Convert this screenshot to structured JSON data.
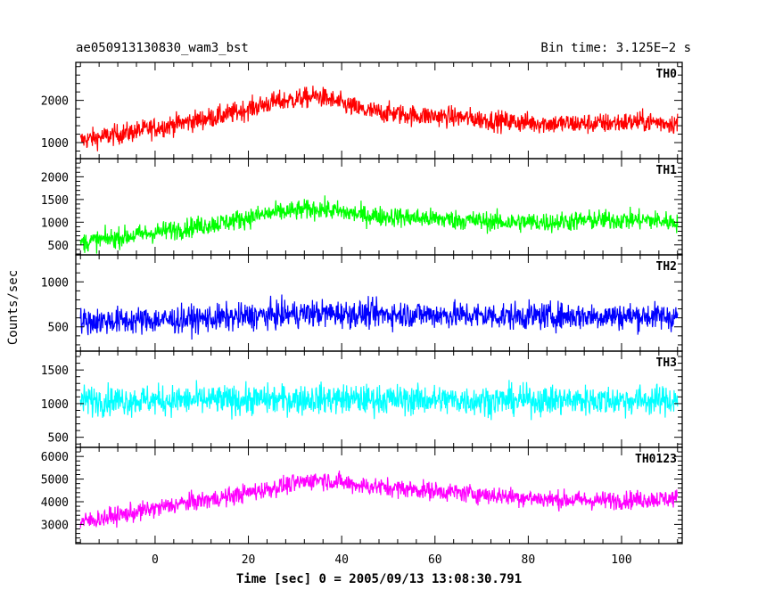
{
  "header": {
    "left_title": "ae050913130830_wam3_bst",
    "right_title": "Bin time: 3.125E−2 s"
  },
  "ylabel": "Counts/sec",
  "xlabel": "Time [sec] 0 = 2005/09/13 13:08:30.791",
  "chart_data": {
    "type": "line",
    "title": "ae050913130830_wam3_bst",
    "subtitle": "Bin time: 3.125E−2 s",
    "xlabel": "Time [sec] 0 = 2005/09/13 13:08:30.791",
    "ylabel": "Counts/sec",
    "xlim": [
      -17,
      113
    ],
    "x_ticks": [
      0,
      20,
      40,
      60,
      80,
      100
    ],
    "x_range_data": [
      -16,
      112
    ],
    "grid": false,
    "panels": [
      {
        "name": "TH0",
        "color": "#ff0000",
        "ylim": [
          620,
          2900
        ],
        "yticks": [
          1000,
          2000
        ],
        "x": [
          -16,
          -5,
          5,
          15,
          25,
          35,
          45,
          55,
          65,
          75,
          85,
          95,
          105,
          112
        ],
        "y": [
          1050,
          1250,
          1450,
          1650,
          1950,
          2100,
          1750,
          1650,
          1600,
          1500,
          1450,
          1450,
          1500,
          1450
        ],
        "spread": 420
      },
      {
        "name": "TH1",
        "color": "#00ff00",
        "ylim": [
          280,
          2400
        ],
        "yticks": [
          500,
          1000,
          1500,
          2000
        ],
        "x": [
          -16,
          -5,
          5,
          15,
          25,
          35,
          45,
          55,
          65,
          75,
          85,
          95,
          105,
          112
        ],
        "y": [
          550,
          700,
          850,
          1000,
          1200,
          1300,
          1150,
          1100,
          1050,
          1000,
          1000,
          1050,
          1050,
          1000
        ],
        "spread": 380
      },
      {
        "name": "TH2",
        "color": "#0000ff",
        "ylim": [
          230,
          1300
        ],
        "yticks": [
          500,
          1000
        ],
        "x": [
          -16,
          -5,
          5,
          15,
          25,
          35,
          45,
          55,
          65,
          75,
          85,
          95,
          105,
          112
        ],
        "y": [
          560,
          570,
          580,
          600,
          630,
          650,
          640,
          640,
          630,
          620,
          620,
          620,
          620,
          610
        ],
        "spread": 260
      },
      {
        "name": "TH3",
        "color": "#00ffff",
        "ylim": [
          350,
          1780
        ],
        "yticks": [
          500,
          1000,
          1500
        ],
        "x": [
          -16,
          -5,
          5,
          15,
          25,
          35,
          45,
          55,
          65,
          75,
          85,
          95,
          105,
          112
        ],
        "y": [
          1050,
          1050,
          1050,
          1050,
          1060,
          1070,
          1060,
          1060,
          1050,
          1050,
          1050,
          1050,
          1050,
          1050
        ],
        "spread": 380
      },
      {
        "name": "TH0123",
        "color": "#ff00ff",
        "ylim": [
          2150,
          6400
        ],
        "yticks": [
          3000,
          4000,
          5000,
          6000
        ],
        "x": [
          -16,
          -5,
          5,
          15,
          25,
          35,
          45,
          55,
          65,
          75,
          85,
          95,
          105,
          112
        ],
        "y": [
          3100,
          3500,
          3900,
          4200,
          4600,
          5000,
          4700,
          4550,
          4400,
          4250,
          4100,
          4050,
          4100,
          4150
        ],
        "spread": 700
      }
    ]
  }
}
